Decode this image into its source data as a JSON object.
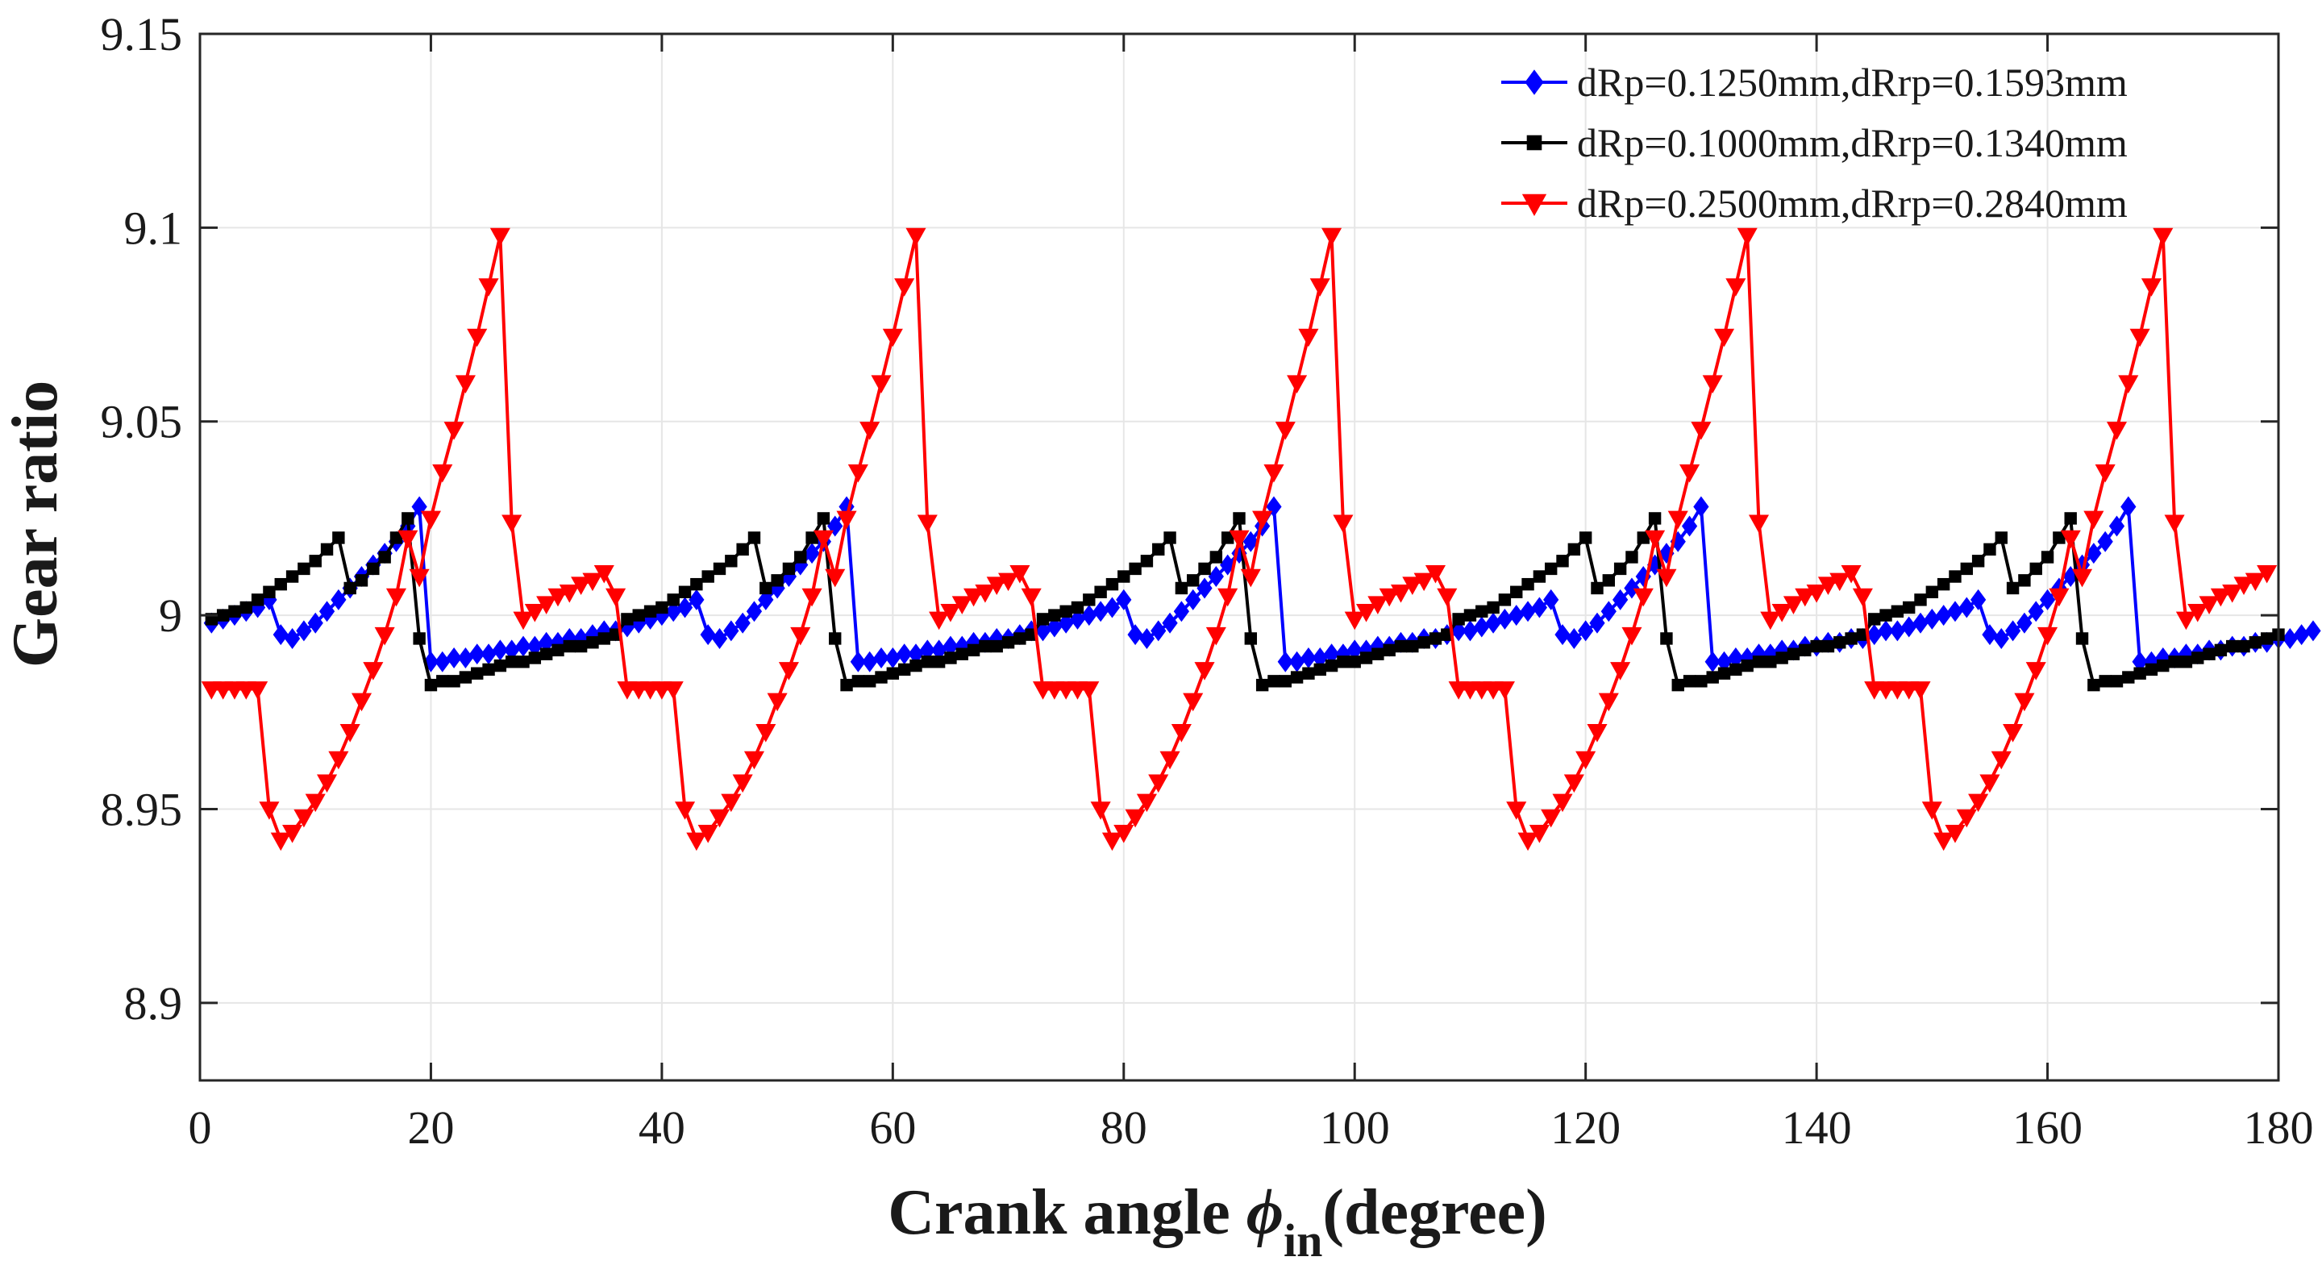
{
  "chart_data": {
    "type": "line",
    "title": "",
    "xlabel_prefix": "Crank angle ",
    "xlabel_symbol": "ϕ",
    "xlabel_subscript": "in",
    "xlabel_suffix": "(degree)",
    "ylabel": "Gear ratio",
    "xlim": [
      0,
      180
    ],
    "ylim": [
      8.88,
      9.15
    ],
    "xticks": [
      "0",
      "20",
      "40",
      "60",
      "80",
      "100",
      "120",
      "140",
      "160",
      "180"
    ],
    "xtick_values": [
      0,
      20,
      40,
      60,
      80,
      100,
      120,
      140,
      160,
      180
    ],
    "yticks": [
      "8.9",
      "8.95",
      "9",
      "9.05",
      "9.1",
      "9.15"
    ],
    "ytick_values": [
      8.9,
      8.95,
      9.0,
      9.05,
      9.1,
      9.15
    ],
    "grid": true,
    "legend_position": "top-right",
    "x_start": 1,
    "x_step": 1,
    "series": [
      {
        "name": "dRp=0.1250mm,dRrp=0.1593mm",
        "color": "#0000ff",
        "marker": "diamond",
        "values": [
          8.998,
          8.999,
          9.0,
          9.001,
          9.002,
          9.004,
          8.995,
          8.994,
          8.996,
          8.998,
          9.001,
          9.004,
          9.007,
          9.01,
          9.013,
          9.016,
          9.019,
          9.023,
          9.028,
          8.988,
          8.988,
          8.989,
          8.989,
          8.99,
          8.99,
          8.991,
          8.991,
          8.992,
          8.992,
          8.993,
          8.993,
          8.994,
          8.994,
          8.995,
          8.996,
          8.996,
          8.997,
          8.998,
          8.999,
          9.0,
          9.001,
          9.002,
          9.004,
          8.995,
          8.994,
          8.996,
          8.998,
          9.001,
          9.004,
          9.007,
          9.01,
          9.013,
          9.016,
          9.019,
          9.023,
          9.028,
          8.988,
          8.988,
          8.989,
          8.989,
          8.99,
          8.99,
          8.991,
          8.991,
          8.992,
          8.992,
          8.993,
          8.993,
          8.994,
          8.994,
          8.995,
          8.996,
          8.996,
          8.997,
          8.998,
          8.999,
          9.0,
          9.001,
          9.002,
          9.004,
          8.995,
          8.994,
          8.996,
          8.998,
          9.001,
          9.004,
          9.007,
          9.01,
          9.013,
          9.016,
          9.019,
          9.023,
          9.028,
          8.988,
          8.988,
          8.989,
          8.989,
          8.99,
          8.99,
          8.991,
          8.991,
          8.992,
          8.992,
          8.993,
          8.993,
          8.994,
          8.994,
          8.995,
          8.996,
          8.996,
          8.997,
          8.998,
          8.999,
          9.0,
          9.001,
          9.002,
          9.004,
          8.995,
          8.994,
          8.996,
          8.998,
          9.001,
          9.004,
          9.007,
          9.01,
          9.013,
          9.016,
          9.019,
          9.023,
          9.028,
          8.988,
          8.988,
          8.989,
          8.989,
          8.99,
          8.99,
          8.991,
          8.991,
          8.992,
          8.992,
          8.993,
          8.993,
          8.994,
          8.994,
          8.995,
          8.996,
          8.996,
          8.997,
          8.998,
          8.999,
          9.0,
          9.001,
          9.002,
          9.004,
          8.995,
          8.994,
          8.996,
          8.998,
          9.001,
          9.004,
          9.007,
          9.01,
          9.013,
          9.016,
          9.019,
          9.023,
          9.028,
          8.988,
          8.988,
          8.989,
          8.989,
          8.99,
          8.99,
          8.991,
          8.991,
          8.992,
          8.992,
          8.993,
          8.993,
          8.994,
          8.994,
          8.995,
          8.996
        ]
      },
      {
        "name": "dRp=0.1000mm,dRrp=0.1340mm",
        "color": "#000000",
        "marker": "square",
        "values": [
          8.999,
          9.0,
          9.001,
          9.002,
          9.004,
          9.006,
          9.008,
          9.01,
          9.012,
          9.014,
          9.017,
          9.02,
          9.007,
          9.009,
          9.012,
          9.015,
          9.02,
          9.025,
          8.994,
          8.982,
          8.983,
          8.983,
          8.984,
          8.985,
          8.986,
          8.987,
          8.988,
          8.988,
          8.989,
          8.99,
          8.991,
          8.992,
          8.992,
          8.993,
          8.994,
          8.995,
          8.999,
          9.0,
          9.001,
          9.002,
          9.004,
          9.006,
          9.008,
          9.01,
          9.012,
          9.014,
          9.017,
          9.02,
          9.007,
          9.009,
          9.012,
          9.015,
          9.02,
          9.025,
          8.994,
          8.982,
          8.983,
          8.983,
          8.984,
          8.985,
          8.986,
          8.987,
          8.988,
          8.988,
          8.989,
          8.99,
          8.991,
          8.992,
          8.992,
          8.993,
          8.994,
          8.995,
          8.999,
          9.0,
          9.001,
          9.002,
          9.004,
          9.006,
          9.008,
          9.01,
          9.012,
          9.014,
          9.017,
          9.02,
          9.007,
          9.009,
          9.012,
          9.015,
          9.02,
          9.025,
          8.994,
          8.982,
          8.983,
          8.983,
          8.984,
          8.985,
          8.986,
          8.987,
          8.988,
          8.988,
          8.989,
          8.99,
          8.991,
          8.992,
          8.992,
          8.993,
          8.994,
          8.995,
          8.999,
          9.0,
          9.001,
          9.002,
          9.004,
          9.006,
          9.008,
          9.01,
          9.012,
          9.014,
          9.017,
          9.02,
          9.007,
          9.009,
          9.012,
          9.015,
          9.02,
          9.025,
          8.994,
          8.982,
          8.983,
          8.983,
          8.984,
          8.985,
          8.986,
          8.987,
          8.988,
          8.988,
          8.989,
          8.99,
          8.991,
          8.992,
          8.992,
          8.993,
          8.994,
          8.995,
          8.999,
          9.0,
          9.001,
          9.002,
          9.004,
          9.006,
          9.008,
          9.01,
          9.012,
          9.014,
          9.017,
          9.02,
          9.007,
          9.009,
          9.012,
          9.015,
          9.02,
          9.025,
          8.994,
          8.982,
          8.983,
          8.983,
          8.984,
          8.985,
          8.986,
          8.987,
          8.988,
          8.988,
          8.989,
          8.99,
          8.991,
          8.992,
          8.992,
          8.993,
          8.994,
          8.995
        ]
      },
      {
        "name": "dRp=0.2500mm,dRrp=0.2840mm",
        "color": "#ff0000",
        "marker": "triangle-down",
        "values": [
          8.981,
          8.981,
          8.981,
          8.981,
          8.981,
          8.95,
          8.942,
          8.944,
          8.948,
          8.952,
          8.957,
          8.963,
          8.97,
          8.978,
          8.986,
          8.995,
          9.005,
          9.02,
          9.01,
          9.025,
          9.037,
          9.048,
          9.06,
          9.072,
          9.085,
          9.098,
          9.024,
          8.999,
          9.001,
          9.003,
          9.005,
          9.006,
          9.008,
          9.009,
          9.011,
          9.005,
          8.981,
          8.981,
          8.981,
          8.981,
          8.981,
          8.95,
          8.942,
          8.944,
          8.948,
          8.952,
          8.957,
          8.963,
          8.97,
          8.978,
          8.986,
          8.995,
          9.005,
          9.02,
          9.01,
          9.025,
          9.037,
          9.048,
          9.06,
          9.072,
          9.085,
          9.098,
          9.024,
          8.999,
          9.001,
          9.003,
          9.005,
          9.006,
          9.008,
          9.009,
          9.011,
          9.005,
          8.981,
          8.981,
          8.981,
          8.981,
          8.981,
          8.95,
          8.942,
          8.944,
          8.948,
          8.952,
          8.957,
          8.963,
          8.97,
          8.978,
          8.986,
          8.995,
          9.005,
          9.02,
          9.01,
          9.025,
          9.037,
          9.048,
          9.06,
          9.072,
          9.085,
          9.098,
          9.024,
          8.999,
          9.001,
          9.003,
          9.005,
          9.006,
          9.008,
          9.009,
          9.011,
          9.005,
          8.981,
          8.981,
          8.981,
          8.981,
          8.981,
          8.95,
          8.942,
          8.944,
          8.948,
          8.952,
          8.957,
          8.963,
          8.97,
          8.978,
          8.986,
          8.995,
          9.005,
          9.02,
          9.01,
          9.025,
          9.037,
          9.048,
          9.06,
          9.072,
          9.085,
          9.098,
          9.024,
          8.999,
          9.001,
          9.003,
          9.005,
          9.006,
          9.008,
          9.009,
          9.011,
          9.005,
          8.981,
          8.981,
          8.981,
          8.981,
          8.981,
          8.95,
          8.942,
          8.944,
          8.948,
          8.952,
          8.957,
          8.963,
          8.97,
          8.978,
          8.986,
          8.995,
          9.005,
          9.02,
          9.01,
          9.025,
          9.037,
          9.048,
          9.06,
          9.072,
          9.085,
          9.098,
          9.024,
          8.999,
          9.001,
          9.003,
          9.005,
          9.006,
          9.008,
          9.009,
          9.011
        ]
      }
    ]
  }
}
